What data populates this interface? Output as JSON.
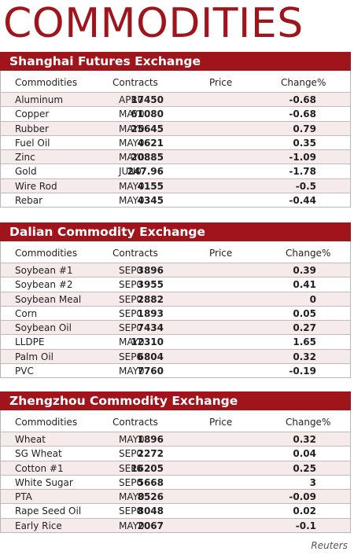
{
  "title": "COMMODITIES",
  "source": "Reuters",
  "sections": [
    {
      "name": "Shanghai Futures Exchange",
      "headers": [
        "Commodities",
        "Contracts",
        "Price",
        "Change%"
      ],
      "rows": [
        [
          "Aluminum",
          "APR0",
          "17450",
          "-0.68"
        ],
        [
          "Copper",
          "MAY0",
          "61080",
          "-0.68"
        ],
        [
          "Rubber",
          "MAY0",
          "25645",
          "0.79"
        ],
        [
          "Fuel Oil",
          "MAY0",
          "4621",
          "0.35"
        ],
        [
          "Zinc",
          "MAY0",
          "20885",
          "-1.09"
        ],
        [
          "Gold",
          "JUN0",
          "247.96",
          "-1.78"
        ],
        [
          "Wire Rod",
          "MAY0",
          "4155",
          "-0.5"
        ],
        [
          "Rebar",
          "MAY0",
          "4345",
          "-0.44"
        ]
      ]
    },
    {
      "name": "Dalian Commodity Exchange",
      "headers": [
        "Commodities",
        "Contracts",
        "Price",
        "Change%"
      ],
      "rows": [
        [
          "Soybean #1",
          "SEP0",
          "3896",
          "0.39"
        ],
        [
          "Soybean #2",
          "SEP0",
          "3955",
          "0.41"
        ],
        [
          "Soybean Meal",
          "SEP0",
          "2882",
          "0"
        ],
        [
          "Corn",
          "SEP0",
          "1893",
          "0.05"
        ],
        [
          "Soybean Oil",
          "SEP0",
          "7434",
          "0.27"
        ],
        [
          "LLDPE",
          "MAY0",
          "12310",
          "1.65"
        ],
        [
          "Palm Oil",
          "SEP0",
          "6804",
          "0.32"
        ],
        [
          "PVC",
          "MAY0",
          "7760",
          "-0.19"
        ]
      ]
    },
    {
      "name": "Zhengzhou Commodity Exchange",
      "headers": [
        "Commodities",
        "Contracts",
        "Price",
        "Change%"
      ],
      "rows": [
        [
          "Wheat",
          "MAY0",
          "1896",
          "0.32"
        ],
        [
          "SG Wheat",
          "SEP0",
          "2272",
          "0.04"
        ],
        [
          "Cotton #1",
          "SEP0",
          "16205",
          "0.25"
        ],
        [
          "White Sugar",
          "SEP0",
          "5668",
          "3"
        ],
        [
          "PTA",
          "MAY0",
          "8526",
          "-0.09"
        ],
        [
          "Rape Seed Oil",
          "SEP0",
          "8048",
          "0.02"
        ],
        [
          "Early Rice",
          "MAY0",
          "2067",
          "-0.1"
        ]
      ]
    }
  ]
}
